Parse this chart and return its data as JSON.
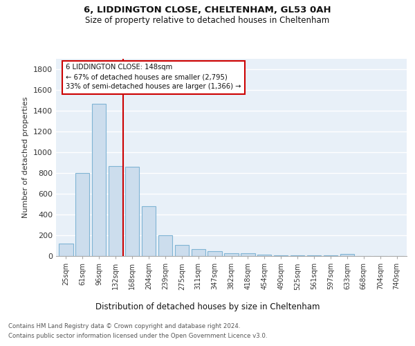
{
  "title1": "6, LIDDINGTON CLOSE, CHELTENHAM, GL53 0AH",
  "title2": "Size of property relative to detached houses in Cheltenham",
  "xlabel": "Distribution of detached houses by size in Cheltenham",
  "ylabel": "Number of detached properties",
  "bins": [
    "25sqm",
    "61sqm",
    "96sqm",
    "132sqm",
    "168sqm",
    "204sqm",
    "239sqm",
    "275sqm",
    "311sqm",
    "347sqm",
    "382sqm",
    "418sqm",
    "454sqm",
    "490sqm",
    "525sqm",
    "561sqm",
    "597sqm",
    "633sqm",
    "668sqm",
    "704sqm",
    "740sqm"
  ],
  "values": [
    120,
    800,
    1470,
    870,
    860,
    480,
    200,
    105,
    70,
    45,
    30,
    25,
    12,
    5,
    5,
    5,
    5,
    18,
    0,
    0,
    0
  ],
  "bar_color": "#ccdded",
  "bar_edge_color": "#7fb4d4",
  "vline_color": "#cc0000",
  "annotation_line1": "6 LIDDINGTON CLOSE: 148sqm",
  "annotation_line2": "← 67% of detached houses are smaller (2,795)",
  "annotation_line3": "33% of semi-detached houses are larger (1,366) →",
  "ylim": [
    0,
    1900
  ],
  "yticks": [
    0,
    200,
    400,
    600,
    800,
    1000,
    1200,
    1400,
    1600,
    1800
  ],
  "footer_line1": "Contains HM Land Registry data © Crown copyright and database right 2024.",
  "footer_line2": "Contains public sector information licensed under the Open Government Licence v3.0.",
  "bg_color": "#ffffff",
  "plot_bg_color": "#e8f0f8",
  "grid_color": "#ffffff"
}
